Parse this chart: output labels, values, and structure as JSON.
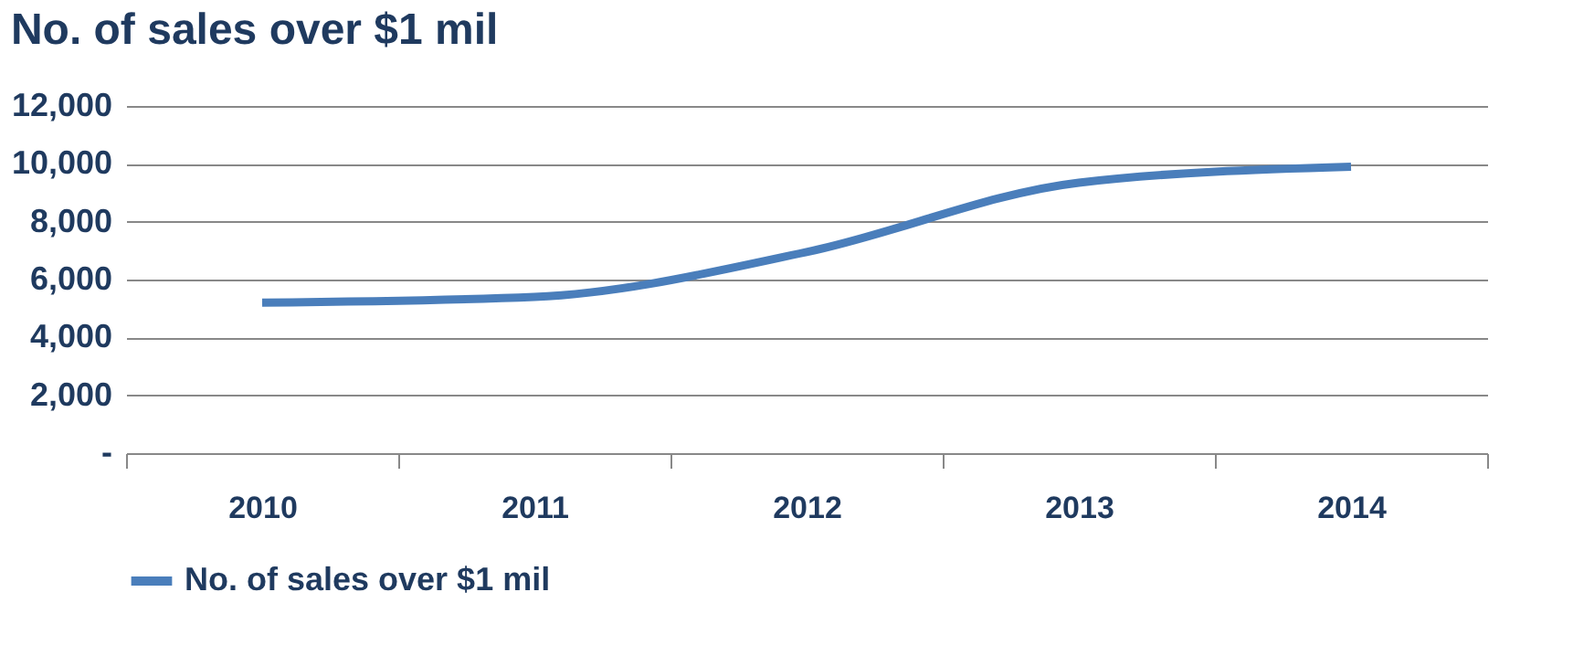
{
  "chart_data": {
    "type": "line",
    "title": "No. of sales over $1 mil",
    "categories": [
      "2010",
      "2011",
      "2012",
      "2013",
      "2014"
    ],
    "series": [
      {
        "name": "No. of sales over $1 mil",
        "color": "#4a7ebb",
        "values": [
          5200,
          5400,
          6950,
          9350,
          9900
        ]
      }
    ],
    "ylim": [
      0,
      12000
    ],
    "yticks": [
      {
        "value": 0,
        "label": "-"
      },
      {
        "value": 2000,
        "label": "2,000"
      },
      {
        "value": 4000,
        "label": "4,000"
      },
      {
        "value": 6000,
        "label": "6,000"
      },
      {
        "value": 8000,
        "label": "8,000"
      },
      {
        "value": 10000,
        "label": "10,000"
      },
      {
        "value": 12000,
        "label": "12,000"
      }
    ],
    "grid": "y",
    "legend": "bottom",
    "marker": "none",
    "line_style": "solid"
  }
}
